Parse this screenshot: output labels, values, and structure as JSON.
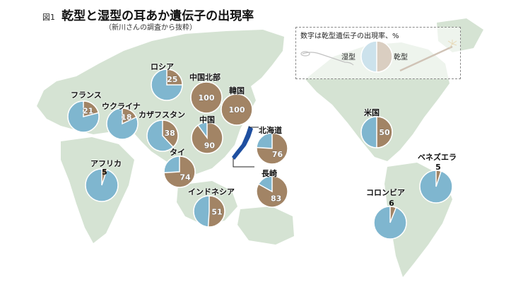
{
  "figure_label": "図1",
  "title": "乾型と湿型の耳あか遺伝子の出現率",
  "subtitle": "（新川さんの調査から抜粋）",
  "legend": {
    "note": "数字は乾型遺伝子の出現率、%",
    "wet_label": "湿型",
    "dry_label": "乾型"
  },
  "colors": {
    "wet": "#7fb6cf",
    "dry": "#a28465",
    "land": "#d5e3d3",
    "japan": "#1f4fa0"
  },
  "chart_data": {
    "type": "pie",
    "categories": [
      "乾型",
      "湿型"
    ],
    "pies": [
      {
        "name": "フランス",
        "dry": 21
      },
      {
        "name": "ロシア",
        "dry": 25
      },
      {
        "name": "ウクライナ",
        "dry": 18
      },
      {
        "name": "カザフスタン",
        "dry": 38
      },
      {
        "name": "中国北部",
        "dry": 100
      },
      {
        "name": "韓国",
        "dry": 100
      },
      {
        "name": "中国",
        "dry": 90
      },
      {
        "name": "北海道",
        "dry": 76
      },
      {
        "name": "タイ",
        "dry": 74
      },
      {
        "name": "長崎",
        "dry": 83
      },
      {
        "name": "インドネシア",
        "dry": 51
      },
      {
        "name": "アフリカ",
        "dry": 5
      },
      {
        "name": "米国",
        "dry": 50
      },
      {
        "name": "ベネズエラ",
        "dry": 5
      },
      {
        "name": "コロンビア",
        "dry": 6
      }
    ]
  }
}
